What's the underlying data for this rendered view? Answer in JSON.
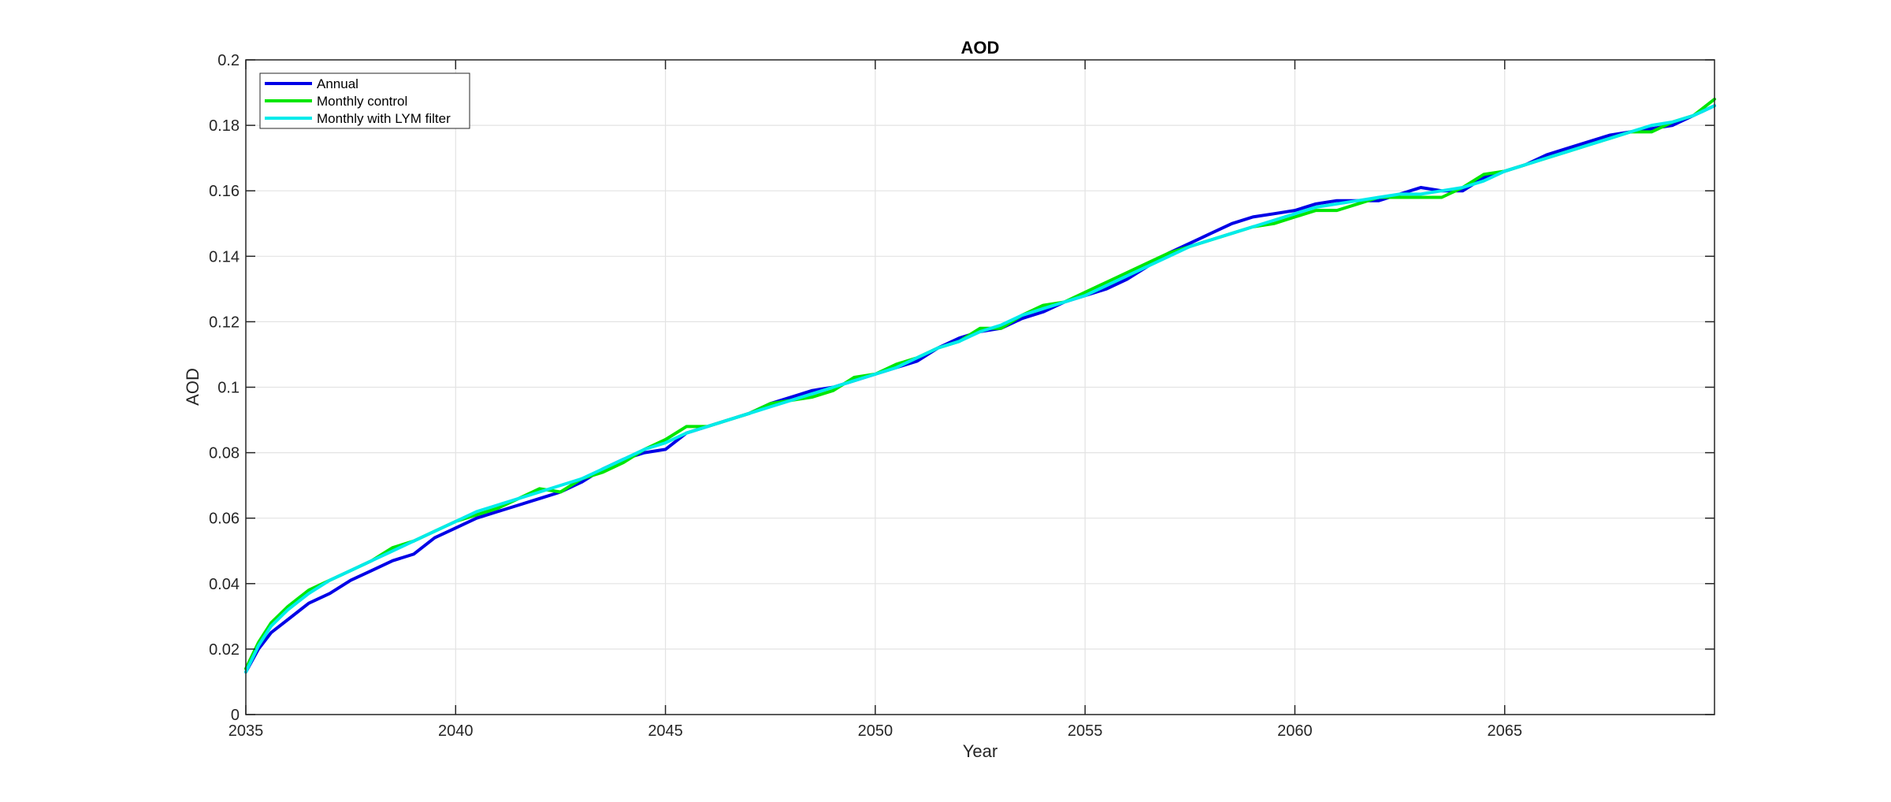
{
  "chart_data": {
    "type": "line",
    "title": "AOD",
    "xlabel": "Year",
    "ylabel": "AOD",
    "xlim": [
      2035,
      2070
    ],
    "ylim": [
      0,
      0.2
    ],
    "xticks": [
      2035,
      2040,
      2045,
      2050,
      2055,
      2060,
      2065
    ],
    "xtick_labels": [
      "2035",
      "2040",
      "2045",
      "2050",
      "2055",
      "2060",
      "2065"
    ],
    "yticks": [
      0,
      0.02,
      0.04,
      0.06,
      0.08,
      0.1,
      0.12,
      0.14,
      0.16,
      0.18,
      0.2
    ],
    "ytick_labels": [
      "0",
      "0.02",
      "0.04",
      "0.06",
      "0.08",
      "0.1",
      "0.12",
      "0.14",
      "0.16",
      "0.18",
      "0.2"
    ],
    "grid": true,
    "legend_position": "top-left",
    "series": [
      {
        "name": "Annual",
        "color": "#0000e6",
        "x": [
          2035.0,
          2035.3,
          2035.6,
          2036.0,
          2036.5,
          2037.0,
          2037.5,
          2038.0,
          2038.5,
          2039.0,
          2039.5,
          2040.0,
          2040.5,
          2041.0,
          2041.5,
          2042.0,
          2042.5,
          2043.0,
          2043.5,
          2044.0,
          2044.5,
          2045.0,
          2045.5,
          2046.0,
          2046.5,
          2047.0,
          2047.5,
          2048.0,
          2048.5,
          2049.0,
          2049.5,
          2050.0,
          2050.5,
          2051.0,
          2051.5,
          2052.0,
          2052.5,
          2053.0,
          2053.5,
          2054.0,
          2054.5,
          2055.0,
          2055.5,
          2056.0,
          2056.5,
          2057.0,
          2057.5,
          2058.0,
          2058.5,
          2059.0,
          2059.5,
          2060.0,
          2060.5,
          2061.0,
          2061.5,
          2062.0,
          2062.5,
          2063.0,
          2063.5,
          2064.0,
          2064.5,
          2065.0,
          2065.5,
          2066.0,
          2066.5,
          2067.0,
          2067.5,
          2068.0,
          2068.5,
          2069.0,
          2069.5,
          2070.0
        ],
        "y": [
          0.013,
          0.02,
          0.025,
          0.029,
          0.034,
          0.037,
          0.041,
          0.044,
          0.047,
          0.049,
          0.054,
          0.057,
          0.06,
          0.062,
          0.064,
          0.066,
          0.068,
          0.071,
          0.075,
          0.078,
          0.08,
          0.081,
          0.086,
          0.088,
          0.09,
          0.092,
          0.095,
          0.097,
          0.099,
          0.1,
          0.102,
          0.104,
          0.106,
          0.108,
          0.112,
          0.115,
          0.117,
          0.118,
          0.121,
          0.123,
          0.126,
          0.128,
          0.13,
          0.133,
          0.137,
          0.141,
          0.144,
          0.147,
          0.15,
          0.152,
          0.153,
          0.154,
          0.156,
          0.157,
          0.157,
          0.157,
          0.159,
          0.161,
          0.16,
          0.16,
          0.164,
          0.166,
          0.168,
          0.171,
          0.173,
          0.175,
          0.177,
          0.178,
          0.179,
          0.18,
          0.183,
          0.186
        ]
      },
      {
        "name": "Monthly control",
        "color": "#00e600",
        "x": [
          2035.0,
          2035.3,
          2035.6,
          2036.0,
          2036.5,
          2037.0,
          2037.5,
          2038.0,
          2038.5,
          2039.0,
          2039.5,
          2040.0,
          2040.5,
          2041.0,
          2041.5,
          2042.0,
          2042.5,
          2043.0,
          2043.5,
          2044.0,
          2044.5,
          2045.0,
          2045.5,
          2046.0,
          2046.5,
          2047.0,
          2047.5,
          2048.0,
          2048.5,
          2049.0,
          2049.5,
          2050.0,
          2050.5,
          2051.0,
          2051.5,
          2052.0,
          2052.5,
          2053.0,
          2053.5,
          2054.0,
          2054.5,
          2055.0,
          2055.5,
          2056.0,
          2056.5,
          2057.0,
          2057.5,
          2058.0,
          2058.5,
          2059.0,
          2059.5,
          2060.0,
          2060.5,
          2061.0,
          2061.5,
          2062.0,
          2062.5,
          2063.0,
          2063.5,
          2064.0,
          2064.5,
          2065.0,
          2065.5,
          2066.0,
          2066.5,
          2067.0,
          2067.5,
          2068.0,
          2068.5,
          2069.0,
          2069.5,
          2070.0
        ],
        "y": [
          0.014,
          0.022,
          0.028,
          0.033,
          0.038,
          0.041,
          0.044,
          0.047,
          0.051,
          0.053,
          0.056,
          0.059,
          0.061,
          0.063,
          0.066,
          0.069,
          0.068,
          0.072,
          0.074,
          0.077,
          0.081,
          0.084,
          0.088,
          0.088,
          0.09,
          0.092,
          0.095,
          0.096,
          0.097,
          0.099,
          0.103,
          0.104,
          0.107,
          0.109,
          0.112,
          0.114,
          0.118,
          0.118,
          0.122,
          0.125,
          0.126,
          0.129,
          0.132,
          0.135,
          0.138,
          0.141,
          0.143,
          0.145,
          0.147,
          0.149,
          0.15,
          0.152,
          0.154,
          0.154,
          0.156,
          0.158,
          0.158,
          0.158,
          0.158,
          0.161,
          0.165,
          0.166,
          0.168,
          0.17,
          0.172,
          0.174,
          0.176,
          0.178,
          0.178,
          0.181,
          0.183,
          0.188
        ]
      },
      {
        "name": "Monthly with LYM filter",
        "color": "#00ebeb",
        "x": [
          2035.0,
          2035.3,
          2035.6,
          2036.0,
          2036.5,
          2037.0,
          2037.5,
          2038.0,
          2038.5,
          2039.0,
          2039.5,
          2040.0,
          2040.5,
          2041.0,
          2041.5,
          2042.0,
          2042.5,
          2043.0,
          2043.5,
          2044.0,
          2044.5,
          2045.0,
          2045.5,
          2046.0,
          2046.5,
          2047.0,
          2047.5,
          2048.0,
          2048.5,
          2049.0,
          2049.5,
          2050.0,
          2050.5,
          2051.0,
          2051.5,
          2052.0,
          2052.5,
          2053.0,
          2053.5,
          2054.0,
          2054.5,
          2055.0,
          2055.5,
          2056.0,
          2056.5,
          2057.0,
          2057.5,
          2058.0,
          2058.5,
          2059.0,
          2059.5,
          2060.0,
          2060.5,
          2061.0,
          2061.5,
          2062.0,
          2062.5,
          2063.0,
          2063.5,
          2064.0,
          2064.5,
          2065.0,
          2065.5,
          2066.0,
          2066.5,
          2067.0,
          2067.5,
          2068.0,
          2068.5,
          2069.0,
          2069.5,
          2070.0
        ],
        "y": [
          0.013,
          0.021,
          0.027,
          0.032,
          0.037,
          0.041,
          0.044,
          0.047,
          0.05,
          0.053,
          0.056,
          0.059,
          0.062,
          0.064,
          0.066,
          0.068,
          0.07,
          0.072,
          0.075,
          0.078,
          0.081,
          0.083,
          0.086,
          0.088,
          0.09,
          0.092,
          0.094,
          0.096,
          0.098,
          0.1,
          0.102,
          0.104,
          0.106,
          0.109,
          0.112,
          0.114,
          0.117,
          0.119,
          0.122,
          0.124,
          0.126,
          0.128,
          0.131,
          0.134,
          0.137,
          0.14,
          0.143,
          0.145,
          0.147,
          0.149,
          0.151,
          0.153,
          0.155,
          0.156,
          0.157,
          0.158,
          0.159,
          0.159,
          0.16,
          0.161,
          0.163,
          0.166,
          0.168,
          0.17,
          0.172,
          0.174,
          0.176,
          0.178,
          0.18,
          0.181,
          0.183,
          0.186
        ]
      }
    ]
  }
}
